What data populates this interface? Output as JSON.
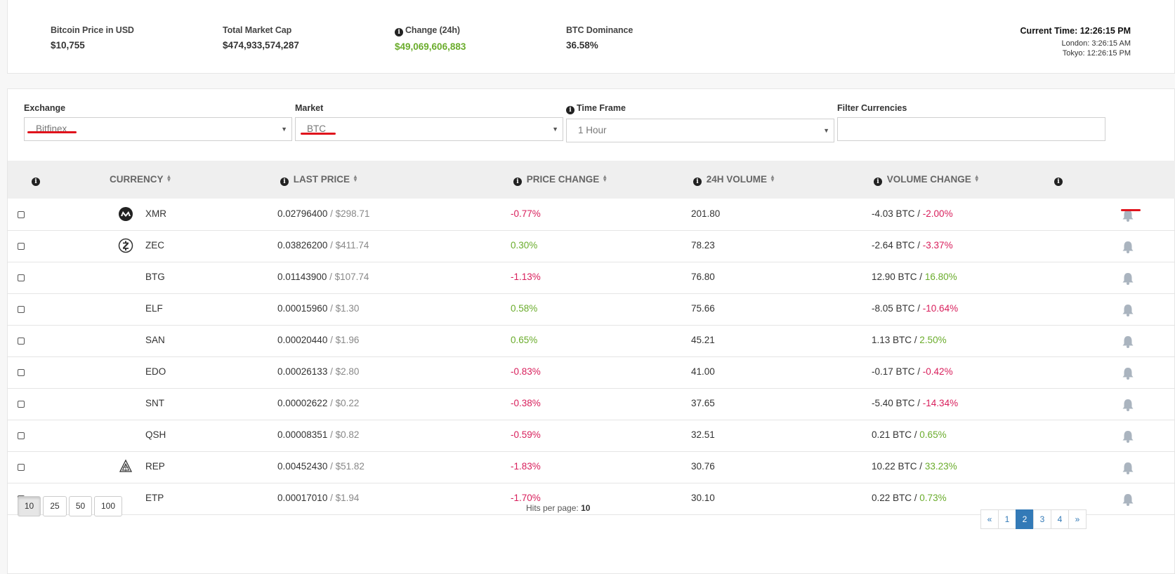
{
  "stats": {
    "btc_price": {
      "label": "Bitcoin Price in USD",
      "value": "$10,755"
    },
    "market_cap": {
      "label": "Total Market Cap",
      "value": "$474,933,574,287"
    },
    "change": {
      "label": "Change (24h)",
      "value": "$49,069,606,883"
    },
    "dominance": {
      "label": "BTC Dominance",
      "value": "36.58%"
    }
  },
  "clock": {
    "current": "Current Time: 12:26:15 PM",
    "london": "London: 3:26:15 AM",
    "tokyo": "Tokyo: 12:26:15 PM"
  },
  "filters": {
    "exchange": {
      "label": "Exchange",
      "value": "Bitfinex"
    },
    "market": {
      "label": "Market",
      "value": "BTC"
    },
    "timeframe": {
      "label": "Time Frame",
      "value": "1 Hour"
    },
    "currencies": {
      "label": "Filter Currencies",
      "value": ""
    }
  },
  "table": {
    "headers": {
      "currency": "CURRENCY",
      "last_price": "LAST PRICE",
      "price_change": "PRICE CHANGE",
      "volume": "24H VOLUME",
      "volume_change": "VOLUME CHANGE"
    },
    "rows": [
      {
        "symbol": "XMR",
        "icon": "monero-icon",
        "price": "0.02796400",
        "usd": "/ $298.71",
        "change": "-0.77%",
        "volume": "201.80",
        "vol_btc": "-4.03 BTC",
        "vol_pct": "-2.00%"
      },
      {
        "symbol": "ZEC",
        "icon": "zcash-icon",
        "price": "0.03826200",
        "usd": "/ $411.74",
        "change": "0.30%",
        "volume": "78.23",
        "vol_btc": "-2.64 BTC",
        "vol_pct": "-3.37%"
      },
      {
        "symbol": "BTG",
        "icon": "",
        "price": "0.01143900",
        "usd": "/ $107.74",
        "change": "-1.13%",
        "volume": "76.80",
        "vol_btc": "12.90 BTC",
        "vol_pct": "16.80%"
      },
      {
        "symbol": "ELF",
        "icon": "",
        "price": "0.00015960",
        "usd": "/ $1.30",
        "change": "0.58%",
        "volume": "75.66",
        "vol_btc": "-8.05 BTC",
        "vol_pct": "-10.64%"
      },
      {
        "symbol": "SAN",
        "icon": "",
        "price": "0.00020440",
        "usd": "/ $1.96",
        "change": "0.65%",
        "volume": "45.21",
        "vol_btc": "1.13 BTC",
        "vol_pct": "2.50%"
      },
      {
        "symbol": "EDO",
        "icon": "",
        "price": "0.00026133",
        "usd": "/ $2.80",
        "change": "-0.83%",
        "volume": "41.00",
        "vol_btc": "-0.17 BTC",
        "vol_pct": "-0.42%"
      },
      {
        "symbol": "SNT",
        "icon": "",
        "price": "0.00002622",
        "usd": "/ $0.22",
        "change": "-0.38%",
        "volume": "37.65",
        "vol_btc": "-5.40 BTC",
        "vol_pct": "-14.34%"
      },
      {
        "symbol": "QSH",
        "icon": "",
        "price": "0.00008351",
        "usd": "/ $0.82",
        "change": "-0.59%",
        "volume": "32.51",
        "vol_btc": "0.21 BTC",
        "vol_pct": "0.65%"
      },
      {
        "symbol": "REP",
        "icon": "augur-icon",
        "price": "0.00452430",
        "usd": "/ $51.82",
        "change": "-1.83%",
        "volume": "30.76",
        "vol_btc": "10.22 BTC",
        "vol_pct": "33.23%"
      },
      {
        "symbol": "ETP",
        "icon": "",
        "price": "0.00017010",
        "usd": "/ $1.94",
        "change": "-1.70%",
        "volume": "30.10",
        "vol_btc": "0.22 BTC",
        "vol_pct": "0.73%"
      }
    ]
  },
  "footer": {
    "per_page_options": [
      "10",
      "25",
      "50",
      "100"
    ],
    "hits_label": "Hits per page:",
    "hits_value": "10",
    "pages": [
      "«",
      "1",
      "2",
      "3",
      "4",
      "»"
    ],
    "active_page": "2"
  },
  "colors": {
    "positive": "#6aac2b",
    "negative": "#d81e5b",
    "accent": "#337ab7",
    "highlight": "#e0131c"
  }
}
